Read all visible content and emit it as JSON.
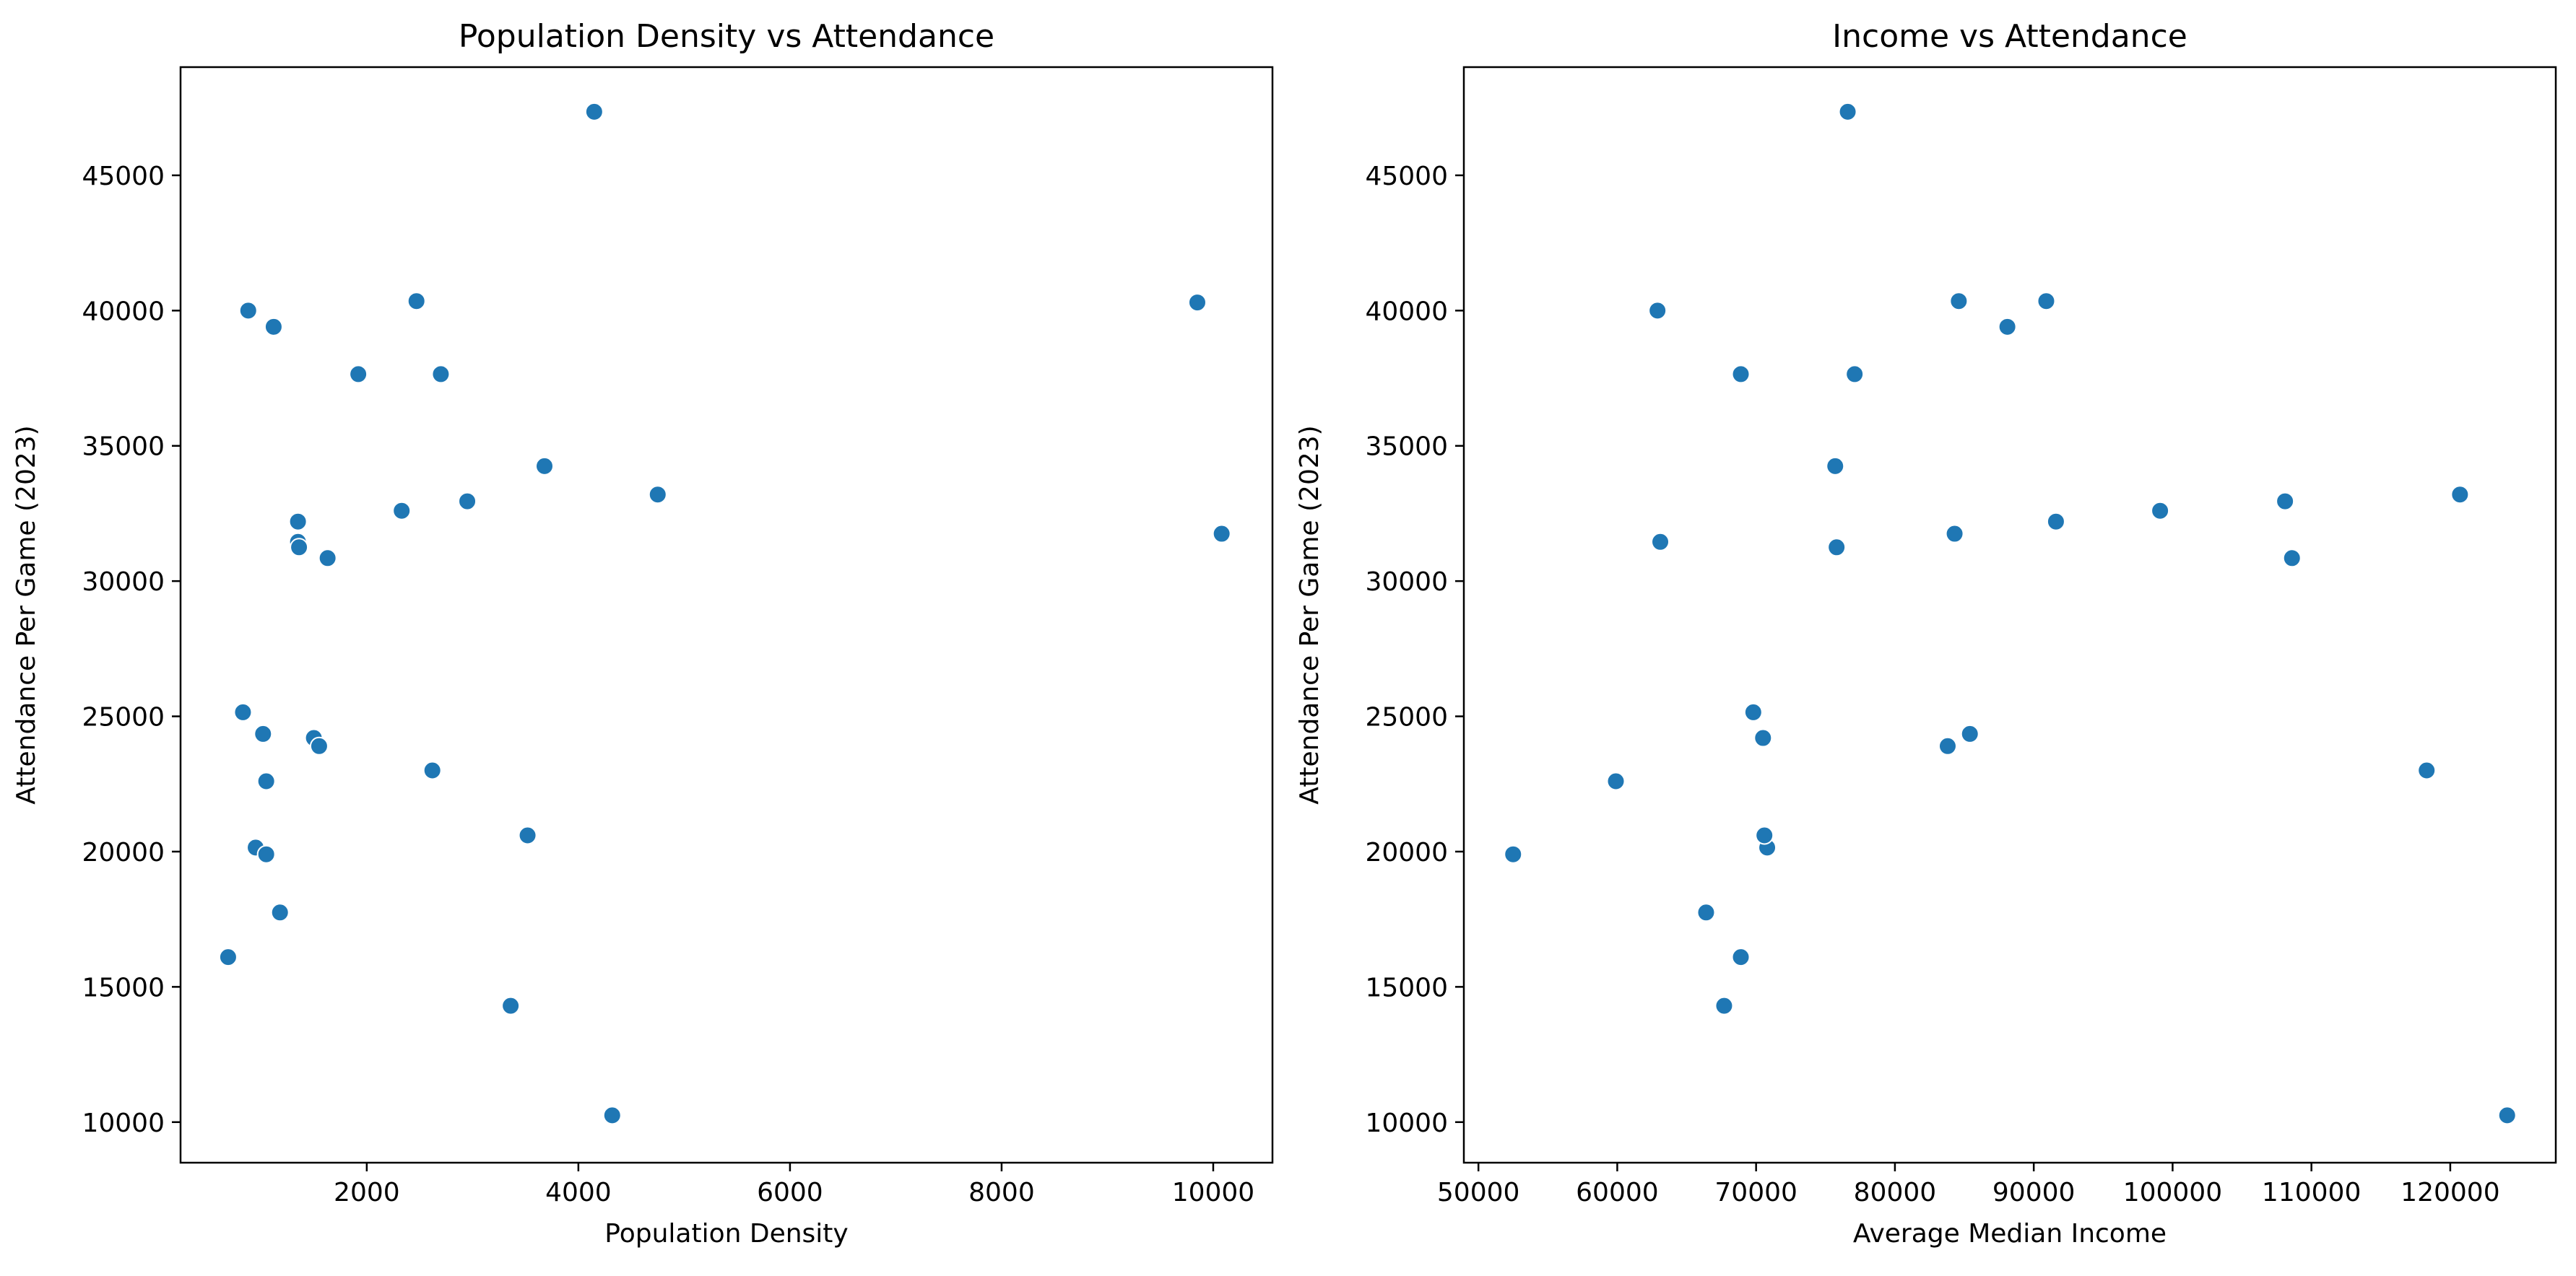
{
  "chart_data": [
    {
      "type": "scatter",
      "title": "Population Density vs Attendance",
      "xlabel": "Population Density",
      "ylabel": "Attendance Per Game (2023)",
      "xlim": [
        240,
        10560
      ],
      "ylim": [
        8500,
        49000
      ],
      "xticks": [
        2000,
        4000,
        6000,
        8000,
        10000
      ],
      "xtick_labels": [
        "2000",
        "4000",
        "6000",
        "8000",
        "10000"
      ],
      "yticks": [
        10000,
        15000,
        20000,
        25000,
        30000,
        35000,
        40000,
        45000
      ],
      "ytick_labels": [
        "10000",
        "15000",
        "20000",
        "25000",
        "30000",
        "35000",
        "40000",
        "45000"
      ],
      "grid": false,
      "series": [
        {
          "color": "#1f77b4",
          "x": [
            4150,
            2470,
            9850,
            880,
            1120,
            1920,
            2700,
            3680,
            4750,
            2950,
            2330,
            1350,
            1350,
            1360,
            10080,
            1630,
            830,
            1020,
            1500,
            1550,
            2620,
            1050,
            950,
            1050,
            3520,
            1180,
            690,
            3360,
            4320
          ],
          "y": [
            47350,
            40350,
            40300,
            40000,
            39400,
            37650,
            37650,
            34250,
            33200,
            32950,
            32600,
            32200,
            31450,
            31250,
            31750,
            30850,
            25150,
            24350,
            24200,
            23900,
            23000,
            22600,
            20150,
            19900,
            20600,
            17750,
            16100,
            14300,
            10250
          ]
        }
      ]
    },
    {
      "type": "scatter",
      "title": "Income vs Attendance",
      "xlabel": "Average Median Income",
      "ylabel": "Attendance Per Game (2023)",
      "xlim": [
        48950,
        127600
      ],
      "ylim": [
        8500,
        49000
      ],
      "xticks": [
        50000,
        60000,
        70000,
        80000,
        90000,
        100000,
        110000,
        120000
      ],
      "xtick_labels": [
        "50000",
        "60000",
        "70000",
        "80000",
        "90000",
        "100000",
        "110000",
        "120000"
      ],
      "yticks": [
        10000,
        15000,
        20000,
        25000,
        30000,
        35000,
        40000,
        45000
      ],
      "ytick_labels": [
        "10000",
        "15000",
        "20000",
        "25000",
        "30000",
        "35000",
        "40000",
        "45000"
      ],
      "grid": false,
      "series": [
        {
          "color": "#1f77b4",
          "x": [
            76600,
            84600,
            90900,
            62900,
            88100,
            68900,
            77100,
            75700,
            120700,
            108100,
            99100,
            91600,
            63100,
            75800,
            84300,
            108600,
            69800,
            85400,
            70500,
            83800,
            118300,
            59900,
            70800,
            52500,
            70600,
            66400,
            68900,
            67700,
            124100
          ],
          "y": [
            47350,
            40350,
            40350,
            40000,
            39400,
            37650,
            37650,
            34250,
            33200,
            32950,
            32600,
            32200,
            31450,
            31250,
            31750,
            30850,
            25150,
            24350,
            24200,
            23900,
            23000,
            22600,
            20150,
            19900,
            20600,
            17750,
            16100,
            14300,
            10250
          ]
        }
      ]
    }
  ]
}
